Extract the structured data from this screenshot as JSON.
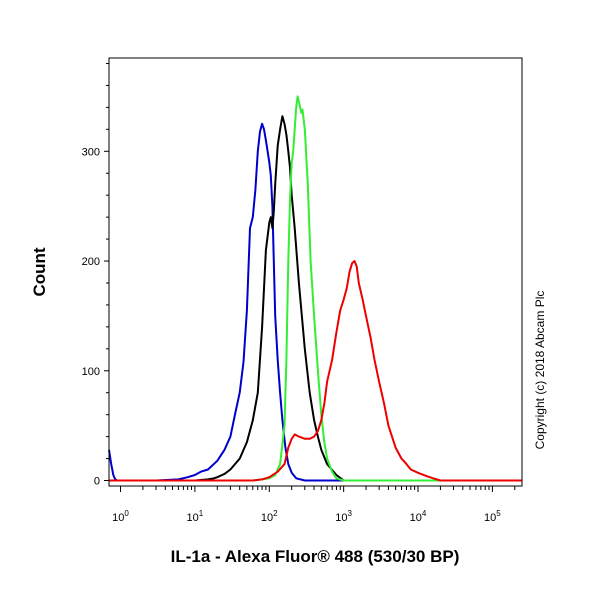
{
  "chart_data": {
    "type": "line",
    "xlabel": "IL-1a - Alexa Fluor® 488 (530/30 BP)",
    "ylabel": "Count",
    "x_scale": "log",
    "xlim": [
      0.7,
      250000
    ],
    "ylim": [
      -5,
      385
    ],
    "x_ticks": [
      {
        "value": 1,
        "base": "10",
        "exp": "0"
      },
      {
        "value": 10,
        "base": "10",
        "exp": "1"
      },
      {
        "value": 100,
        "base": "10",
        "exp": "2"
      },
      {
        "value": 1000,
        "base": "10",
        "exp": "3"
      },
      {
        "value": 10000,
        "base": "10",
        "exp": "4"
      },
      {
        "value": 100000,
        "base": "10",
        "exp": "5"
      }
    ],
    "y_ticks": [
      {
        "value": 0,
        "label": "0"
      },
      {
        "value": 100,
        "label": "100"
      },
      {
        "value": 200,
        "label": "200"
      },
      {
        "value": 300,
        "label": "300"
      }
    ],
    "grid": false,
    "annotation": "Copyright (c) 2018 Abcam Plc",
    "series": [
      {
        "color": "#0000cc",
        "x": [
          0.7,
          0.75,
          0.8,
          0.85,
          0.9,
          1,
          3,
          6,
          8,
          10,
          12,
          15,
          20,
          25,
          30,
          35,
          40,
          45,
          50,
          55,
          60,
          65,
          70,
          75,
          80,
          85,
          90,
          95,
          100,
          105,
          110,
          115,
          120,
          130,
          140,
          150,
          165,
          180,
          200,
          230,
          300,
          1000,
          250000
        ],
        "y": [
          28,
          15,
          5,
          1,
          0,
          0,
          0,
          1,
          3,
          5,
          8,
          10,
          18,
          28,
          40,
          62,
          80,
          108,
          155,
          230,
          240,
          265,
          300,
          318,
          325,
          320,
          310,
          300,
          290,
          278,
          250,
          200,
          150,
          110,
          80,
          55,
          30,
          15,
          7,
          2,
          0,
          0,
          0
        ]
      },
      {
        "color": "#000000",
        "x": [
          0.7,
          10,
          15,
          18,
          20,
          25,
          30,
          40,
          50,
          60,
          70,
          80,
          90,
          100,
          105,
          110,
          115,
          120,
          130,
          140,
          150,
          160,
          170,
          180,
          190,
          200,
          220,
          250,
          300,
          350,
          400,
          450,
          500,
          600,
          800,
          1000,
          250000
        ],
        "y": [
          0,
          0,
          1,
          2,
          3,
          6,
          10,
          20,
          35,
          55,
          80,
          140,
          210,
          235,
          240,
          230,
          245,
          270,
          305,
          320,
          332,
          325,
          315,
          300,
          285,
          260,
          230,
          180,
          120,
          80,
          55,
          40,
          28,
          15,
          5,
          0,
          0
        ]
      },
      {
        "color": "#33ee33",
        "x": [
          0.7,
          30,
          60,
          80,
          100,
          120,
          140,
          160,
          170,
          180,
          190,
          200,
          210,
          220,
          230,
          240,
          250,
          260,
          270,
          280,
          300,
          330,
          360,
          400,
          450,
          500,
          550,
          600,
          700,
          800,
          1000,
          250000
        ],
        "y": [
          0,
          0,
          0,
          1,
          2,
          5,
          15,
          50,
          110,
          200,
          255,
          290,
          300,
          320,
          340,
          350,
          345,
          340,
          335,
          338,
          320,
          270,
          200,
          150,
          100,
          60,
          35,
          20,
          8,
          2,
          0,
          0
        ]
      },
      {
        "color": "#ee0000",
        "x": [
          0.7,
          60,
          80,
          100,
          130,
          160,
          180,
          200,
          220,
          250,
          300,
          350,
          400,
          450,
          500,
          550,
          600,
          700,
          800,
          900,
          1000,
          1100,
          1200,
          1300,
          1400,
          1500,
          1600,
          1800,
          2000,
          2300,
          2600,
          3000,
          3500,
          4000,
          5000,
          6000,
          7000,
          8000,
          10000,
          13000,
          16000,
          20000,
          250000
        ],
        "y": [
          0,
          0,
          1,
          3,
          8,
          15,
          30,
          38,
          42,
          40,
          38,
          38,
          40,
          45,
          55,
          70,
          90,
          110,
          135,
          155,
          165,
          175,
          190,
          198,
          200,
          195,
          180,
          165,
          150,
          130,
          110,
          90,
          70,
          50,
          30,
          20,
          15,
          10,
          7,
          4,
          2,
          0,
          0
        ]
      }
    ]
  }
}
